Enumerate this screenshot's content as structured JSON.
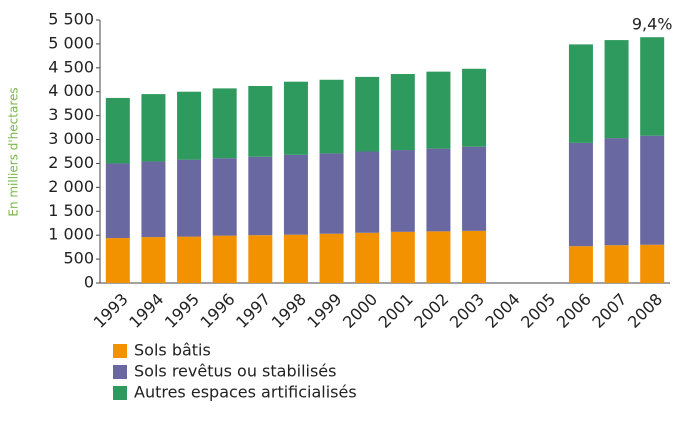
{
  "chart_data": {
    "type": "stacked_bar",
    "y_label": "En milliers d'hectares",
    "annotation": "9,4%",
    "categories": [
      "1993",
      "1994",
      "1995",
      "1996",
      "1997",
      "1998",
      "1999",
      "2000",
      "2001",
      "2002",
      "2003",
      "2004",
      "2005",
      "2006",
      "2007",
      "2008"
    ],
    "series": [
      {
        "name": "Sols bâtis",
        "color": "#f39200",
        "values": [
          940,
          960,
          970,
          990,
          1000,
          1010,
          1030,
          1050,
          1070,
          1080,
          1090,
          null,
          null,
          770,
          790,
          800
        ]
      },
      {
        "name": "Sols revêtus ou stabilisés",
        "color": "#6a68a0",
        "values": [
          1560,
          1580,
          1610,
          1620,
          1640,
          1670,
          1680,
          1700,
          1710,
          1730,
          1760,
          null,
          null,
          2160,
          2240,
          2280
        ]
      },
      {
        "name": "Autres espaces artificialisés",
        "color": "#2e9a5e",
        "values": [
          1370,
          1410,
          1420,
          1460,
          1480,
          1530,
          1540,
          1560,
          1590,
          1610,
          1630,
          null,
          null,
          2060,
          2050,
          2060
        ]
      }
    ],
    "ylim": [
      0,
      5500
    ],
    "yticks": [
      0,
      500,
      {
        "value": 1000,
        "label": "1 000"
      },
      {
        "value": 1500,
        "label": "1 500"
      },
      {
        "value": 2000,
        "label": "2 000"
      },
      {
        "value": 2500,
        "label": "2 500"
      },
      {
        "value": 3000,
        "label": "3 000"
      },
      {
        "value": 3500,
        "label": "3 500"
      },
      {
        "value": 4000,
        "label": "4 000"
      },
      {
        "value": 4500,
        "label": "4 500"
      },
      {
        "value": 5000,
        "label": "5 000"
      },
      {
        "value": 5500,
        "label": "5 500"
      }
    ]
  }
}
